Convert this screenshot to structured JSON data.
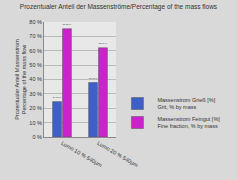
{
  "chart_data": {
    "type": "bar",
    "title": "Prozentualer Anteil der Massenströme/Percentage of the mass flows",
    "y_label": "Prozentualer Anteil Massenstrom\nPercentage of the mass flow",
    "categories": [
      "Lumo 10 % 540µm",
      "Lumo 20 % 540µm"
    ],
    "series": [
      {
        "name": "Massenstrom Grieß [%]\nGrit, % by mass",
        "color": "#3f5fc8",
        "values": [
          24.65,
          37.93
        ],
        "value_labels": [
          "24.65 %",
          "37.93 %"
        ]
      },
      {
        "name": "Massenstrom Feingut [%]\nFine fraction, % by mass",
        "color": "#cc22cc",
        "values": [
          75.35,
          62.07
        ],
        "value_labels": [
          "75.35 %",
          "62.07 %"
        ]
      }
    ],
    "ylim": [
      0,
      80
    ],
    "yticks": [
      {
        "value": 0,
        "label": "0 %"
      },
      {
        "value": 10,
        "label": "10 %"
      },
      {
        "value": 20,
        "label": "20 %"
      },
      {
        "value": 30,
        "label": "30 %"
      },
      {
        "value": 40,
        "label": "40 %"
      },
      {
        "value": 50,
        "label": "50 %"
      },
      {
        "value": 60,
        "label": "60 %"
      },
      {
        "value": 70,
        "label": "70 %"
      },
      {
        "value": 80,
        "label": "80 %"
      }
    ],
    "grid": true,
    "data_labels": true,
    "legend": "right"
  }
}
